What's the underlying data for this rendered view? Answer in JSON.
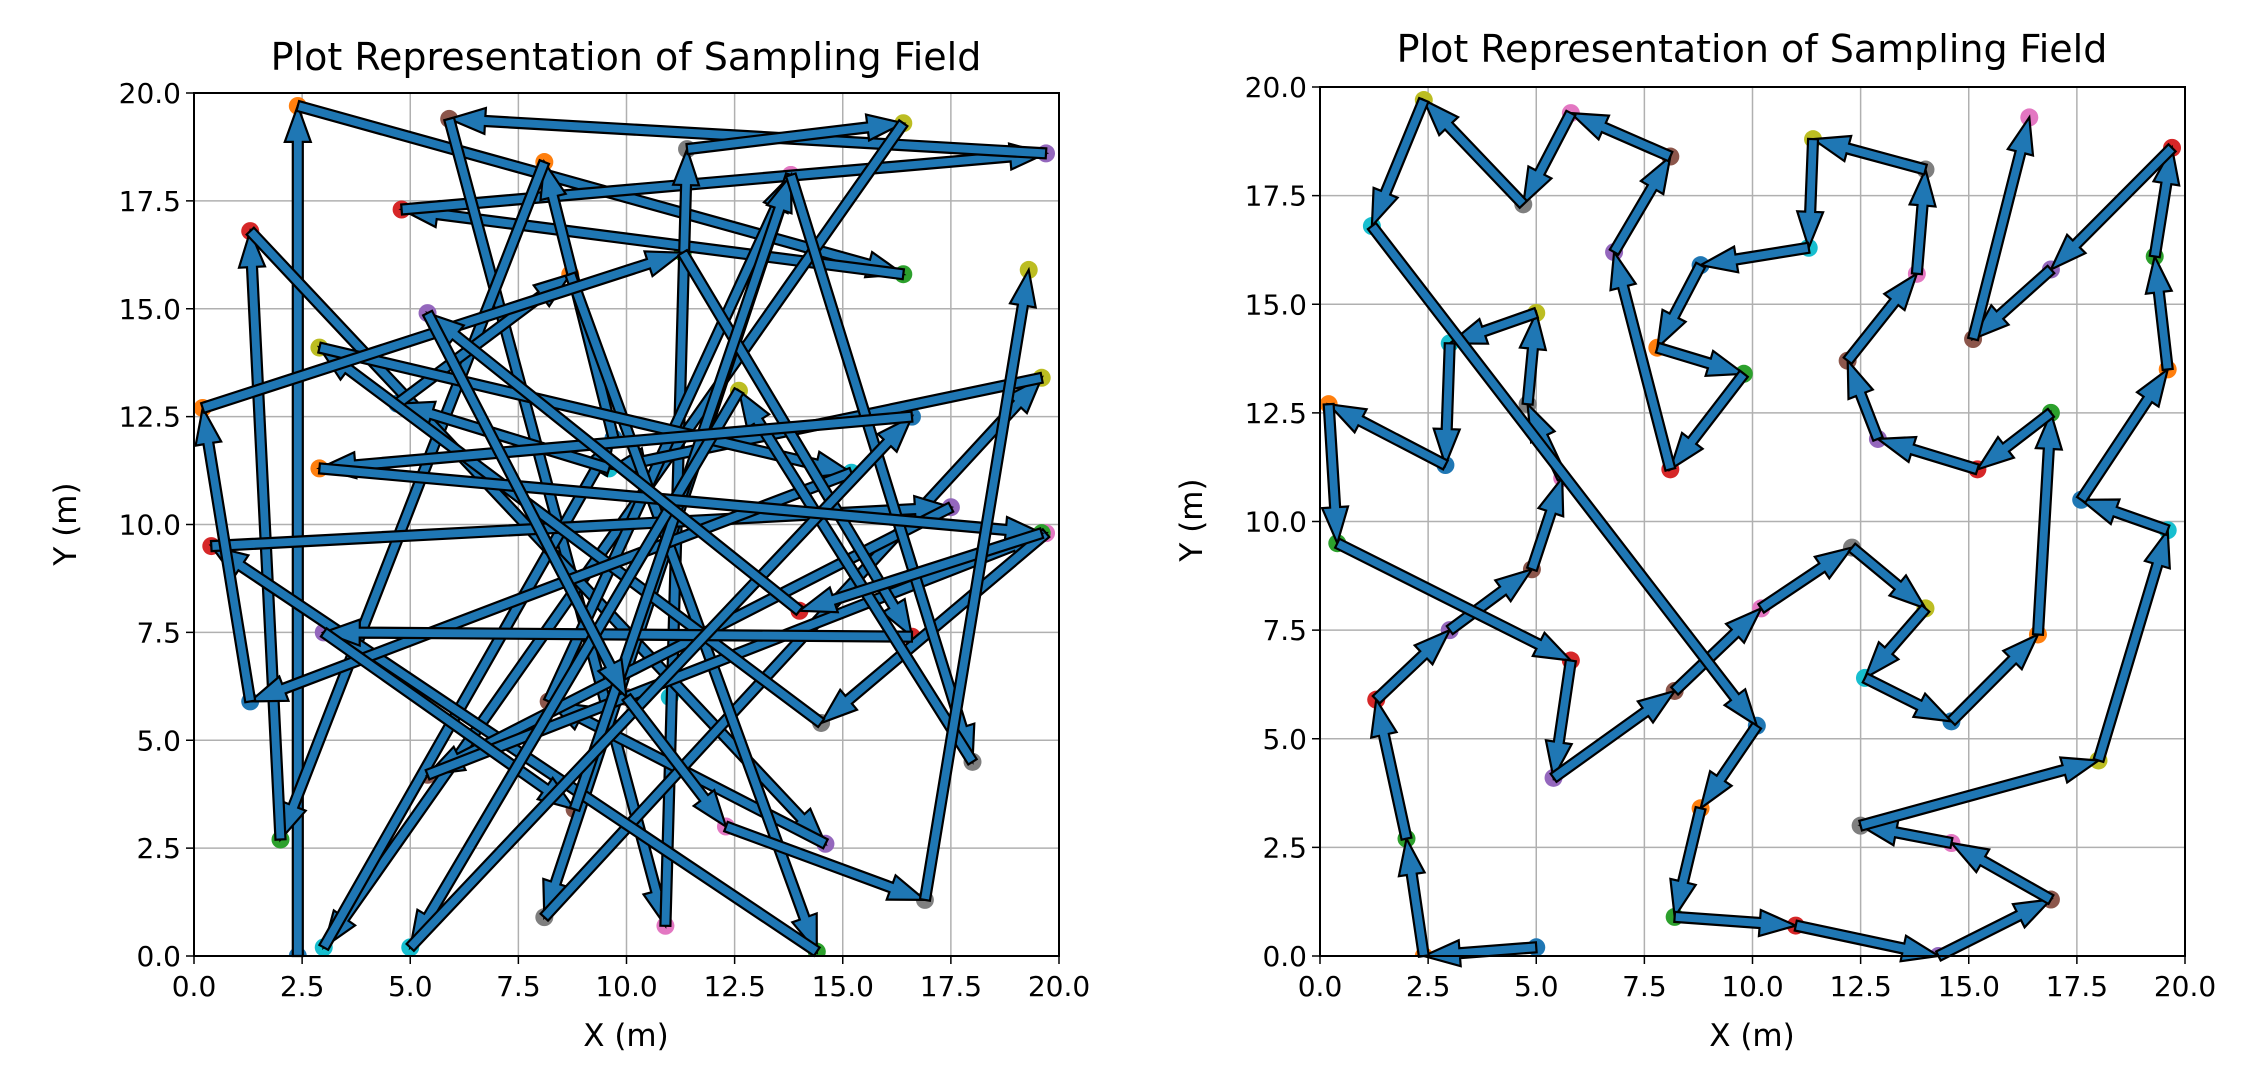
{
  "palette": [
    "#1f77b4",
    "#ff7f0e",
    "#2ca02c",
    "#d62728",
    "#9467bd",
    "#8c564b",
    "#e377c2",
    "#7f7f7f",
    "#bcbd22",
    "#17becf"
  ],
  "arrow_color": "#1f77b4",
  "chart_data": [
    {
      "type": "scatter",
      "title": "Plot Representation of Sampling Field",
      "xlabel": "X (m)",
      "ylabel": "Y (m)",
      "xlim": [
        0,
        20
      ],
      "ylim": [
        0,
        20
      ],
      "xticks": [
        "0.0",
        "2.5",
        "5.0",
        "7.5",
        "10.0",
        "12.5",
        "15.0",
        "17.5",
        "20.0"
      ],
      "yticks": [
        "0.0",
        "2.5",
        "5.0",
        "7.5",
        "10.0",
        "12.5",
        "15.0",
        "17.5",
        "20.0"
      ],
      "grid": true,
      "points": [
        [
          2.4,
          0.0
        ],
        [
          2.4,
          19.7
        ],
        [
          16.4,
          15.8
        ],
        [
          4.8,
          17.3
        ],
        [
          19.7,
          18.6
        ],
        [
          5.9,
          19.4
        ],
        [
          10.9,
          0.7
        ],
        [
          11.4,
          18.7
        ],
        [
          16.4,
          19.3
        ],
        [
          3.0,
          0.2
        ],
        [
          9.7,
          12.0
        ],
        [
          8.1,
          18.4
        ],
        [
          2.0,
          2.7
        ],
        [
          1.3,
          16.8
        ],
        [
          14.6,
          2.6
        ],
        [
          8.2,
          5.9
        ],
        [
          13.8,
          18.1
        ],
        [
          8.1,
          0.9
        ],
        [
          19.6,
          13.4
        ],
        [
          9.6,
          11.3
        ],
        [
          4.7,
          12.8
        ],
        [
          8.7,
          15.8
        ],
        [
          14.4,
          0.1
        ],
        [
          0.4,
          9.5
        ],
        [
          17.5,
          10.4
        ],
        [
          5.4,
          4.2
        ],
        [
          19.7,
          9.8
        ],
        [
          14.5,
          5.4
        ],
        [
          2.9,
          14.1
        ],
        [
          15.2,
          11.2
        ],
        [
          1.3,
          5.9
        ],
        [
          0.2,
          12.7
        ],
        [
          11.3,
          16.3
        ],
        [
          16.6,
          7.4
        ],
        [
          3.0,
          7.5
        ],
        [
          8.8,
          3.4
        ],
        [
          13.8,
          18.1
        ],
        [
          18.0,
          4.5
        ],
        [
          12.6,
          13.1
        ],
        [
          5.0,
          0.2
        ],
        [
          16.6,
          12.5
        ],
        [
          2.9,
          11.3
        ],
        [
          19.6,
          9.8
        ],
        [
          14.0,
          8.0
        ],
        [
          5.4,
          14.9
        ],
        [
          10.0,
          6.0
        ],
        [
          12.3,
          3.0
        ],
        [
          16.9,
          1.3
        ],
        [
          19.3,
          15.9
        ],
        [
          11.0,
          6.0
        ]
      ],
      "path": [
        [
          2.4,
          0.0
        ],
        [
          2.4,
          19.7
        ],
        [
          16.4,
          15.8
        ],
        [
          4.8,
          17.3
        ],
        [
          19.7,
          18.6
        ],
        [
          5.9,
          19.4
        ],
        [
          10.9,
          0.7
        ],
        [
          11.4,
          18.7
        ],
        [
          16.4,
          19.3
        ],
        [
          3.0,
          0.2
        ],
        [
          9.7,
          12.0
        ],
        [
          8.1,
          18.4
        ],
        [
          2.0,
          2.7
        ],
        [
          1.3,
          16.8
        ],
        [
          14.6,
          2.6
        ],
        [
          8.2,
          5.9
        ],
        [
          13.8,
          18.1
        ],
        [
          8.1,
          0.9
        ],
        [
          19.6,
          13.4
        ],
        [
          9.6,
          11.3
        ],
        [
          4.7,
          12.8
        ],
        [
          8.7,
          15.8
        ],
        [
          14.4,
          0.1
        ],
        [
          0.4,
          9.5
        ],
        [
          17.5,
          10.4
        ],
        [
          5.4,
          4.2
        ],
        [
          19.7,
          9.8
        ],
        [
          14.5,
          5.4
        ],
        [
          2.9,
          14.1
        ],
        [
          15.2,
          11.2
        ],
        [
          1.3,
          5.9
        ],
        [
          0.2,
          12.7
        ],
        [
          11.3,
          16.3
        ],
        [
          16.6,
          7.4
        ],
        [
          3.0,
          7.5
        ],
        [
          8.8,
          3.4
        ],
        [
          13.8,
          18.1
        ],
        [
          18.0,
          4.5
        ],
        [
          12.6,
          13.1
        ],
        [
          5.0,
          0.2
        ],
        [
          16.6,
          12.5
        ],
        [
          2.9,
          11.3
        ],
        [
          19.6,
          9.8
        ],
        [
          14.0,
          8.0
        ],
        [
          5.4,
          14.9
        ],
        [
          10.0,
          6.0
        ],
        [
          12.3,
          3.0
        ],
        [
          16.9,
          1.3
        ],
        [
          19.3,
          15.9
        ]
      ]
    },
    {
      "type": "scatter",
      "title": "Plot Representation of Sampling Field",
      "xlabel": "X (m)",
      "ylabel": "Y (m)",
      "xlim": [
        0,
        20
      ],
      "ylim": [
        0,
        20
      ],
      "xticks": [
        "0.0",
        "2.5",
        "5.0",
        "7.5",
        "10.0",
        "12.5",
        "15.0",
        "17.5",
        "20.0"
      ],
      "yticks": [
        "0.0",
        "2.5",
        "5.0",
        "7.5",
        "10.0",
        "12.5",
        "15.0",
        "17.5",
        "20.0"
      ],
      "grid": true,
      "points": [
        [
          5.0,
          0.2
        ],
        [
          2.4,
          0.0
        ],
        [
          2.0,
          2.7
        ],
        [
          1.3,
          5.9
        ],
        [
          3.0,
          7.5
        ],
        [
          4.9,
          8.9
        ],
        [
          5.6,
          11.0
        ],
        [
          4.8,
          12.7
        ],
        [
          5.0,
          14.8
        ],
        [
          3.0,
          14.1
        ],
        [
          2.9,
          11.3
        ],
        [
          0.2,
          12.7
        ],
        [
          0.4,
          9.5
        ],
        [
          5.8,
          6.8
        ],
        [
          5.4,
          4.1
        ],
        [
          8.2,
          6.1
        ],
        [
          10.2,
          8.0
        ],
        [
          12.3,
          9.4
        ],
        [
          14.0,
          8.0
        ],
        [
          12.6,
          6.4
        ],
        [
          14.6,
          5.4
        ],
        [
          16.6,
          7.4
        ],
        [
          16.9,
          12.5
        ],
        [
          15.2,
          11.2
        ],
        [
          12.9,
          11.9
        ],
        [
          12.2,
          13.7
        ],
        [
          13.8,
          15.7
        ],
        [
          14.0,
          18.1
        ],
        [
          11.4,
          18.8
        ],
        [
          11.3,
          16.3
        ],
        [
          8.8,
          15.9
        ],
        [
          7.8,
          14.0
        ],
        [
          9.8,
          13.4
        ],
        [
          8.1,
          11.2
        ],
        [
          6.8,
          16.2
        ],
        [
          8.1,
          18.4
        ],
        [
          5.8,
          19.4
        ],
        [
          4.7,
          17.3
        ],
        [
          2.4,
          19.7
        ],
        [
          1.2,
          16.8
        ],
        [
          10.1,
          5.3
        ],
        [
          8.8,
          3.4
        ],
        [
          8.2,
          0.9
        ],
        [
          11.0,
          0.7
        ],
        [
          14.3,
          0.0
        ],
        [
          16.9,
          1.3
        ],
        [
          14.6,
          2.6
        ],
        [
          12.5,
          3.0
        ],
        [
          18.0,
          4.5
        ],
        [
          19.6,
          9.8
        ],
        [
          17.6,
          10.5
        ],
        [
          19.6,
          13.5
        ],
        [
          19.3,
          16.1
        ],
        [
          19.7,
          18.6
        ],
        [
          16.9,
          15.8
        ],
        [
          15.1,
          14.2
        ],
        [
          16.4,
          19.3
        ]
      ],
      "path": [
        [
          5.0,
          0.2
        ],
        [
          2.4,
          0.0
        ],
        [
          2.0,
          2.7
        ],
        [
          1.3,
          5.9
        ],
        [
          3.0,
          7.5
        ],
        [
          4.9,
          8.9
        ],
        [
          5.6,
          11.0
        ],
        [
          4.8,
          12.7
        ],
        [
          5.0,
          14.8
        ],
        [
          3.0,
          14.1
        ],
        [
          2.9,
          11.3
        ],
        [
          0.2,
          12.7
        ],
        [
          0.4,
          9.5
        ],
        [
          5.8,
          6.8
        ],
        [
          5.4,
          4.1
        ],
        [
          8.2,
          6.1
        ],
        [
          10.2,
          8.0
        ],
        [
          12.3,
          9.4
        ],
        [
          14.0,
          8.0
        ],
        [
          12.6,
          6.4
        ],
        [
          14.6,
          5.4
        ],
        [
          16.6,
          7.4
        ],
        [
          16.9,
          12.5
        ],
        [
          15.2,
          11.2
        ],
        [
          12.9,
          11.9
        ],
        [
          12.2,
          13.7
        ],
        [
          13.8,
          15.7
        ],
        [
          14.0,
          18.1
        ],
        [
          11.4,
          18.8
        ],
        [
          11.3,
          16.3
        ],
        [
          8.8,
          15.9
        ],
        [
          7.8,
          14.0
        ],
        [
          9.8,
          13.4
        ],
        [
          8.1,
          11.2
        ],
        [
          6.8,
          16.2
        ],
        [
          8.1,
          18.4
        ],
        [
          5.8,
          19.4
        ],
        [
          4.7,
          17.3
        ],
        [
          2.4,
          19.7
        ],
        [
          1.2,
          16.8
        ],
        [
          10.1,
          5.3
        ],
        [
          8.8,
          3.4
        ],
        [
          8.2,
          0.9
        ],
        [
          11.0,
          0.7
        ],
        [
          14.3,
          0.0
        ],
        [
          16.9,
          1.3
        ],
        [
          14.6,
          2.6
        ],
        [
          12.5,
          3.0
        ],
        [
          18.0,
          4.5
        ],
        [
          19.6,
          9.8
        ],
        [
          17.6,
          10.5
        ],
        [
          19.6,
          13.5
        ],
        [
          19.3,
          16.1
        ],
        [
          19.7,
          18.6
        ],
        [
          16.9,
          15.8
        ],
        [
          15.1,
          14.2
        ],
        [
          16.4,
          19.3
        ]
      ]
    }
  ]
}
